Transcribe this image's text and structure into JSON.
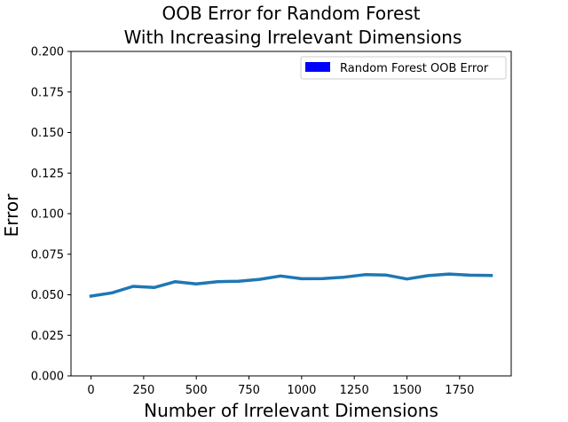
{
  "chart_data": {
    "type": "line",
    "title_lines": [
      "OOB Error for Random Forest",
      "With Increasing Irrelevant Dimensions"
    ],
    "xlabel": "Number of Irrelevant Dimensions",
    "ylabel": "Error",
    "xlim": [
      -95,
      1995
    ],
    "ylim": [
      0.0,
      0.2
    ],
    "x_ticks": [
      0,
      250,
      500,
      750,
      1000,
      1250,
      1500,
      1750
    ],
    "x_tick_labels": [
      "0",
      "250",
      "500",
      "750",
      "1000",
      "1250",
      "1500",
      "1750"
    ],
    "y_ticks": [
      0.0,
      0.025,
      0.05,
      0.075,
      0.1,
      0.125,
      0.15,
      0.175,
      0.2
    ],
    "y_tick_labels": [
      "0.000",
      "0.025",
      "0.050",
      "0.075",
      "0.100",
      "0.125",
      "0.150",
      "0.175",
      "0.200"
    ],
    "grid": false,
    "legend_position": "top-right",
    "series": [
      {
        "name": "Random Forest OOB Error",
        "line_color": "#1f77b4",
        "legend_color": "#0000ff",
        "x": [
          0,
          100,
          200,
          300,
          400,
          500,
          600,
          700,
          800,
          900,
          1000,
          1100,
          1200,
          1300,
          1400,
          1500,
          1600,
          1700,
          1800,
          1900
        ],
        "y": [
          0.0492,
          0.0512,
          0.0552,
          0.0545,
          0.0581,
          0.0567,
          0.0581,
          0.0583,
          0.0595,
          0.0616,
          0.0599,
          0.06,
          0.0608,
          0.0624,
          0.0622,
          0.0597,
          0.0618,
          0.0628,
          0.0621,
          0.0619
        ]
      }
    ]
  }
}
